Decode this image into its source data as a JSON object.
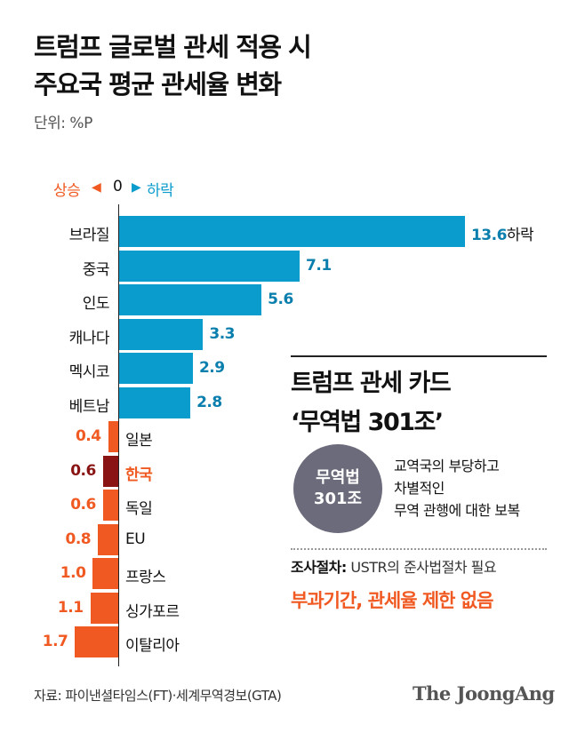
{
  "title_line1": "트럼프 글로벌 관세 적용 시",
  "title_line2": "주요국 평균 관세율 변화",
  "unit": "단위: %P",
  "legend": {
    "up": "상승",
    "zero": "0",
    "down": "하락",
    "up_arrow": "◀",
    "down_arrow": "▶"
  },
  "colors": {
    "down": "#0a9ccc",
    "up": "#f05a22",
    "highlight": "#8a1414",
    "highlight_label": "#f05a22"
  },
  "chart_data": {
    "type": "bar",
    "orientation": "horizontal-diverging",
    "categories": [
      "브라질",
      "중국",
      "인도",
      "캐나다",
      "멕시코",
      "베트남",
      "일본",
      "한국",
      "독일",
      "EU",
      "프랑스",
      "싱가포르",
      "이탈리아"
    ],
    "values": [
      13.6,
      7.1,
      5.6,
      3.3,
      2.9,
      2.8,
      0.4,
      0.6,
      0.6,
      0.8,
      1.0,
      1.1,
      1.7
    ],
    "value_labels": [
      "13.6",
      "7.1",
      "5.6",
      "3.3",
      "2.9",
      "2.8",
      "0.4",
      "0.6",
      "0.6",
      "0.8",
      "1.0",
      "1.1",
      "1.7"
    ],
    "direction": [
      "하락",
      "하락",
      "하락",
      "하락",
      "하락",
      "하락",
      "상승",
      "상승",
      "상승",
      "상승",
      "상승",
      "상승",
      "상승"
    ],
    "first_label_suffix": "하락",
    "highlight": "한국",
    "grid": false
  },
  "card": {
    "title_line1": "트럼프 관세 카드",
    "title_line2": "‘무역법 301조’",
    "circle_line1": "무역법",
    "circle_line2": "301조",
    "desc_line1": "교역국의 부당하고",
    "desc_line2": "차별적인",
    "desc_line3": "무역 관행에 대한 보복",
    "procedure_label": "조사절차:",
    "procedure_text": "USTR의 준사법절차 필요",
    "note": "부과기간, 관세율 제한 없음"
  },
  "source": "자료: 파이낸셜타임스(FT)·세계무역경보(GTA)",
  "logo": "The JoongAng"
}
